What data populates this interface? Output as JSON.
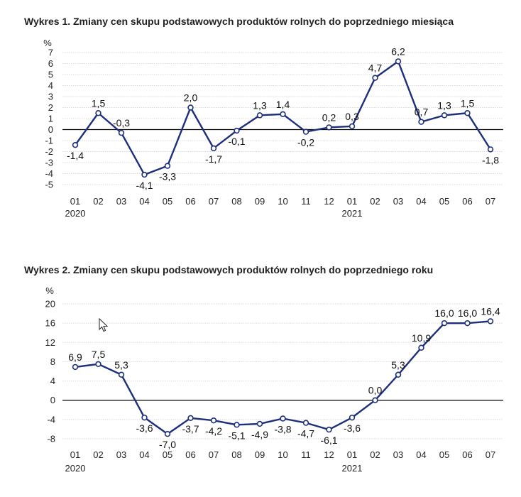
{
  "charts": [
    {
      "title": "Wykres 1. Zmiany cen skupu podstawowych produktów rolnych do poprzedniego miesiąca",
      "chart_data": {
        "type": "line",
        "title": "Wykres 1. Zmiany cen skupu podstawowych produktów rolnych do poprzedniego miesiąca",
        "ylabel": "%",
        "xlabel": "",
        "categories": [
          "01",
          "02",
          "03",
          "04",
          "05",
          "06",
          "07",
          "08",
          "09",
          "10",
          "11",
          "12",
          "01",
          "02",
          "03",
          "04",
          "05",
          "06",
          "07"
        ],
        "year_labels": [
          {
            "index": 0,
            "text": "2020"
          },
          {
            "index": 12,
            "text": "2021"
          }
        ],
        "values": [
          -1.4,
          1.5,
          -0.3,
          -4.1,
          -3.3,
          2.0,
          -1.7,
          -0.1,
          1.3,
          1.4,
          -0.2,
          0.2,
          0.3,
          4.7,
          6.2,
          0.7,
          1.3,
          1.5,
          -1.8
        ],
        "value_labels": [
          "-1,4",
          "1,5",
          "-0,3",
          "-4,1",
          "-3,3",
          "2,0",
          "-1,7",
          "-0,1",
          "1,3",
          "1,4",
          "-0,2",
          "0,2",
          "0,3",
          "4,7",
          "6,2",
          "0,7",
          "1,3",
          "1,5",
          "-1,8"
        ],
        "label_pos": [
          "below",
          "above",
          "above",
          "below",
          "below",
          "above",
          "below",
          "below",
          "above",
          "above",
          "below",
          "above",
          "above",
          "above",
          "above",
          "above",
          "above",
          "above",
          "below"
        ],
        "yticks": [
          -5,
          -4,
          -3,
          -2,
          -1,
          0,
          1,
          2,
          3,
          4,
          5,
          6,
          7
        ],
        "ylim": [
          -5,
          7
        ],
        "grid": true,
        "color": "#1d2f7a"
      }
    },
    {
      "title": "Wykres 2. Zmiany cen skupu podstawowych produktów rolnych do poprzedniego roku",
      "chart_data": {
        "type": "line",
        "title": "Wykres 2. Zmiany cen skupu podstawowych produktów rolnych do poprzedniego roku",
        "ylabel": "%",
        "xlabel": "",
        "categories": [
          "01",
          "02",
          "03",
          "04",
          "05",
          "06",
          "07",
          "08",
          "09",
          "10",
          "11",
          "12",
          "01",
          "02",
          "03",
          "04",
          "05",
          "06",
          "07"
        ],
        "year_labels": [
          {
            "index": 0,
            "text": "2020"
          },
          {
            "index": 12,
            "text": "2021"
          }
        ],
        "values": [
          6.9,
          7.5,
          5.3,
          -3.6,
          -7.0,
          -3.7,
          -4.2,
          -5.1,
          -4.9,
          -3.8,
          -4.7,
          -6.1,
          -3.6,
          0.0,
          5.3,
          10.9,
          16.0,
          16.0,
          16.4
        ],
        "value_labels": [
          "6,9",
          "7,5",
          "5,3",
          "-3,6",
          "-7,0",
          "-3,7",
          "-4,2",
          "-5,1",
          "-4,9",
          "-3,8",
          "-4,7",
          "-6,1",
          "-3,6",
          "0,0",
          "5,3",
          "10,9",
          "16,0",
          "16,0",
          "16,4"
        ],
        "label_pos": [
          "above",
          "above",
          "above",
          "below",
          "below",
          "below",
          "below",
          "below",
          "below",
          "below",
          "below",
          "below",
          "below",
          "above",
          "above",
          "above",
          "above",
          "above",
          "above"
        ],
        "yticks": [
          -8,
          -4,
          0,
          4,
          8,
          12,
          16,
          20
        ],
        "ylim": [
          -8,
          20
        ],
        "grid": true,
        "color": "#1d2f7a"
      }
    }
  ]
}
